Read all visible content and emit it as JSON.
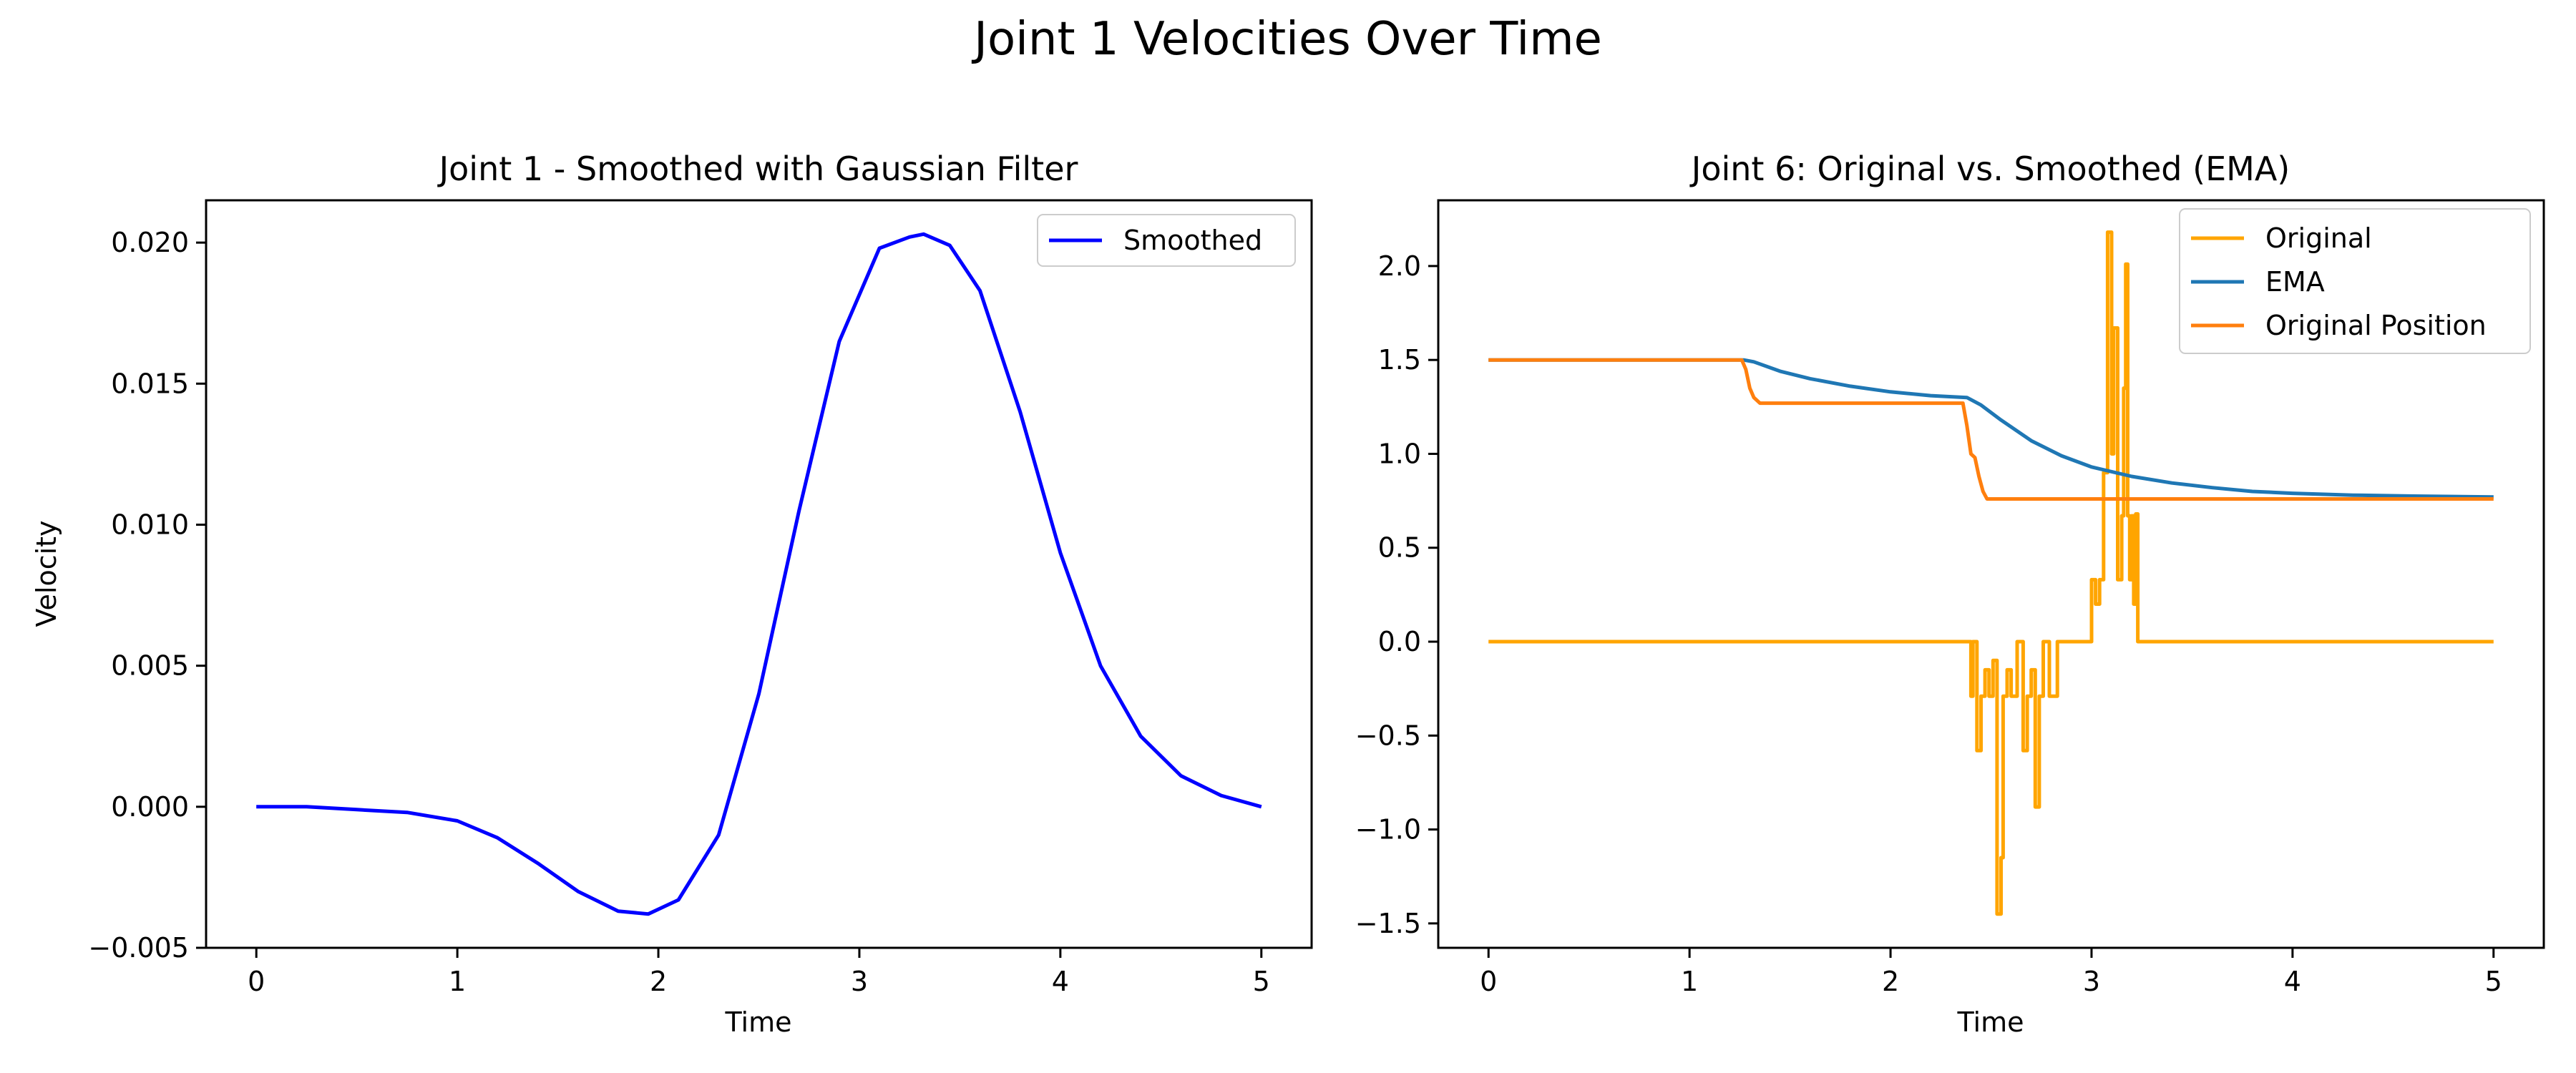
{
  "suptitle": "Joint 1 Velocities Over Time",
  "chart_data": [
    {
      "type": "line",
      "title": "Joint 1 - Smoothed with Gaussian Filter",
      "xlabel": "Time",
      "ylabel": "Velocity",
      "xlim": [
        -0.25,
        5.25
      ],
      "ylim": [
        -0.005,
        0.0215
      ],
      "xticks": [
        0,
        1,
        2,
        3,
        4,
        5
      ],
      "xtick_labels": [
        "0",
        "1",
        "2",
        "3",
        "4",
        "5"
      ],
      "yticks": [
        -0.005,
        0.0,
        0.005,
        0.01,
        0.015,
        0.02
      ],
      "ytick_labels": [
        "−0.005",
        "0.000",
        "0.005",
        "0.010",
        "0.015",
        "0.020"
      ],
      "grid": false,
      "legend_position": "upper right",
      "series": [
        {
          "name": "Smoothed",
          "color": "#0000ff",
          "x": [
            0,
            0.25,
            0.5,
            0.75,
            1.0,
            1.2,
            1.4,
            1.6,
            1.8,
            1.95,
            2.1,
            2.3,
            2.5,
            2.7,
            2.9,
            3.1,
            3.25,
            3.32,
            3.45,
            3.6,
            3.8,
            4.0,
            4.2,
            4.4,
            4.6,
            4.8,
            5.0
          ],
          "y": [
            0.0,
            0.0,
            -0.0001,
            -0.0002,
            -0.0005,
            -0.0011,
            -0.002,
            -0.003,
            -0.0037,
            -0.0038,
            -0.0033,
            -0.001,
            0.004,
            0.0105,
            0.0165,
            0.0198,
            0.0202,
            0.0203,
            0.0199,
            0.0183,
            0.014,
            0.009,
            0.005,
            0.0025,
            0.0011,
            0.0004,
            0.0
          ]
        }
      ]
    },
    {
      "type": "line",
      "title": "Joint 6: Original vs. Smoothed (EMA)",
      "xlabel": "Time",
      "ylabel": "",
      "xlim": [
        -0.25,
        5.25
      ],
      "ylim": [
        -1.63,
        2.35
      ],
      "xticks": [
        0,
        1,
        2,
        3,
        4,
        5
      ],
      "xtick_labels": [
        "0",
        "1",
        "2",
        "3",
        "4",
        "5"
      ],
      "yticks": [
        -1.5,
        -1.0,
        -0.5,
        0.0,
        0.5,
        1.0,
        1.5,
        2.0
      ],
      "ytick_labels": [
        "−1.5",
        "−1.0",
        "−0.5",
        "0.0",
        "0.5",
        "1.0",
        "1.5",
        "2.0"
      ],
      "grid": false,
      "legend_position": "upper right",
      "series": [
        {
          "name": "Original",
          "color": "#ffa500",
          "x": [
            0,
            2.4,
            2.4,
            2.41,
            2.41,
            2.43,
            2.43,
            2.45,
            2.45,
            2.47,
            2.47,
            2.49,
            2.49,
            2.51,
            2.51,
            2.53,
            2.53,
            2.55,
            2.55,
            2.56,
            2.56,
            2.58,
            2.58,
            2.6,
            2.6,
            2.63,
            2.63,
            2.66,
            2.66,
            2.68,
            2.68,
            2.7,
            2.7,
            2.72,
            2.72,
            2.74,
            2.74,
            2.76,
            2.76,
            2.79,
            2.79,
            2.83,
            2.83,
            3.0,
            3.0,
            3.02,
            3.02,
            3.04,
            3.04,
            3.06,
            3.06,
            3.08,
            3.08,
            3.1,
            3.1,
            3.11,
            3.11,
            3.13,
            3.13,
            3.15,
            3.15,
            3.16,
            3.16,
            3.17,
            3.17,
            3.18,
            3.18,
            3.19,
            3.19,
            3.2,
            3.2,
            3.21,
            3.21,
            3.22,
            3.22,
            3.23,
            3.23,
            5.0
          ],
          "y": [
            0,
            0,
            -0.29,
            -0.29,
            0,
            0,
            -0.58,
            -0.58,
            -0.29,
            -0.29,
            -0.15,
            -0.15,
            -0.29,
            -0.29,
            -0.1,
            -0.1,
            -1.45,
            -1.45,
            -1.15,
            -1.15,
            -0.29,
            -0.29,
            -0.15,
            -0.15,
            -0.29,
            -0.29,
            0,
            0,
            -0.58,
            -0.58,
            -0.29,
            -0.29,
            -0.15,
            -0.15,
            -0.88,
            -0.88,
            -0.29,
            -0.29,
            0,
            0,
            -0.29,
            -0.29,
            0,
            0,
            0.33,
            0.33,
            0.2,
            0.2,
            0.33,
            0.33,
            0.9,
            0.9,
            2.18,
            2.18,
            1.0,
            1.0,
            1.67,
            1.67,
            0.33,
            0.33,
            0.67,
            0.67,
            1.35,
            1.35,
            2.01,
            2.01,
            0.67,
            0.67,
            0.33,
            0.33,
            0.67,
            0.67,
            0.2,
            0.2,
            0.68,
            0.68,
            0,
            0
          ]
        },
        {
          "name": "EMA",
          "color": "#1f77b4",
          "x": [
            0,
            1.27,
            1.32,
            1.45,
            1.6,
            1.8,
            2.0,
            2.2,
            2.38,
            2.45,
            2.55,
            2.7,
            2.85,
            3.0,
            3.2,
            3.4,
            3.6,
            3.8,
            4.0,
            4.3,
            4.6,
            5.0
          ],
          "y": [
            1.5,
            1.5,
            1.49,
            1.44,
            1.4,
            1.36,
            1.33,
            1.31,
            1.3,
            1.26,
            1.18,
            1.07,
            0.99,
            0.93,
            0.88,
            0.845,
            0.82,
            0.8,
            0.79,
            0.78,
            0.775,
            0.77
          ]
        },
        {
          "name": "Original Position",
          "color": "#ff7f0e",
          "x": [
            0,
            1.26,
            1.28,
            1.3,
            1.32,
            1.35,
            2.36,
            2.38,
            2.4,
            2.42,
            2.44,
            2.46,
            2.48,
            5.0
          ],
          "y": [
            1.5,
            1.5,
            1.45,
            1.35,
            1.3,
            1.27,
            1.27,
            1.15,
            1.0,
            0.98,
            0.88,
            0.8,
            0.76,
            0.76
          ]
        }
      ]
    }
  ]
}
